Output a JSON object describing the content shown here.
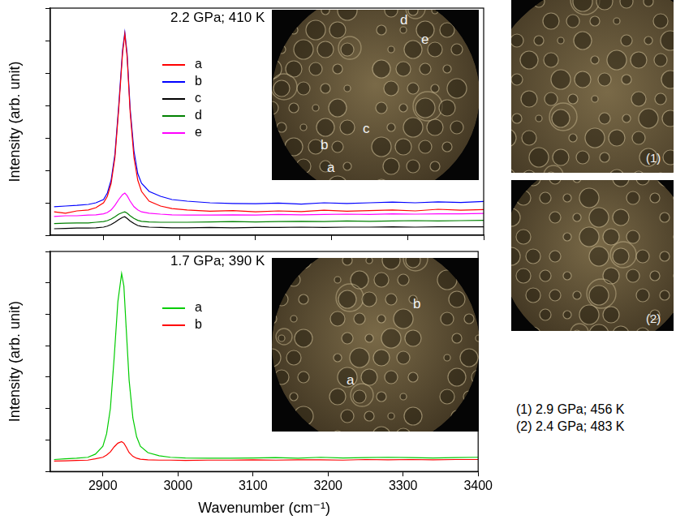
{
  "chart_data": [
    {
      "type": "line",
      "annotation": "2.2 GPa; 410 K",
      "y_label": "Intensity (arb. unit)",
      "x": [
        2835,
        2850,
        2865,
        2880,
        2890,
        2900,
        2905,
        2910,
        2915,
        2920,
        2925,
        2928,
        2931,
        2935,
        2940,
        2945,
        2950,
        2960,
        2975,
        2990,
        3010,
        3040,
        3070,
        3100,
        3130,
        3160,
        3190,
        3220,
        3250,
        3280,
        3310,
        3340,
        3370,
        3400
      ],
      "xlim": [
        2830,
        3400
      ],
      "xticks": [
        2900,
        3000,
        3100,
        3200,
        3300,
        3400
      ],
      "ylim": [
        0,
        7
      ],
      "yticks": [
        0,
        1,
        2,
        3,
        4,
        5,
        6,
        7
      ],
      "tick_labels": false,
      "legend": "upper left",
      "series": [
        {
          "name": "a",
          "color": "#ff0000",
          "values": [
            0.72,
            0.68,
            0.75,
            0.78,
            0.85,
            1.0,
            1.2,
            1.6,
            2.4,
            3.9,
            5.6,
            6.2,
            5.5,
            3.8,
            2.4,
            1.7,
            1.35,
            1.05,
            0.9,
            0.82,
            0.78,
            0.74,
            0.76,
            0.72,
            0.75,
            0.73,
            0.77,
            0.74,
            0.76,
            0.78,
            0.75,
            0.8,
            0.77,
            0.79
          ]
        },
        {
          "name": "b",
          "color": "#0000ff",
          "values": [
            0.88,
            0.9,
            0.92,
            0.95,
            1.0,
            1.1,
            1.3,
            1.7,
            2.5,
            4.0,
            5.7,
            6.25,
            5.6,
            3.9,
            2.6,
            1.9,
            1.6,
            1.35,
            1.2,
            1.1,
            1.05,
            1.0,
            0.98,
            0.97,
            0.99,
            0.96,
            1.0,
            0.98,
            1.0,
            1.02,
            1.0,
            1.03,
            1.01,
            1.04
          ]
        },
        {
          "name": "c",
          "color": "#000000",
          "values": [
            0.2,
            0.21,
            0.22,
            0.22,
            0.23,
            0.25,
            0.28,
            0.33,
            0.4,
            0.48,
            0.55,
            0.57,
            0.52,
            0.44,
            0.36,
            0.3,
            0.27,
            0.25,
            0.24,
            0.23,
            0.23,
            0.24,
            0.23,
            0.24,
            0.24,
            0.25,
            0.24,
            0.25,
            0.25,
            0.26,
            0.25,
            0.26,
            0.26,
            0.26
          ]
        },
        {
          "name": "d",
          "color": "#008000",
          "values": [
            0.36,
            0.37,
            0.38,
            0.38,
            0.4,
            0.42,
            0.45,
            0.5,
            0.57,
            0.65,
            0.7,
            0.72,
            0.68,
            0.6,
            0.52,
            0.46,
            0.43,
            0.41,
            0.4,
            0.4,
            0.4,
            0.41,
            0.42,
            0.41,
            0.42,
            0.43,
            0.42,
            0.44,
            0.43,
            0.44,
            0.45,
            0.44,
            0.45,
            0.46
          ]
        },
        {
          "name": "e",
          "color": "#ff00ff",
          "values": [
            0.58,
            0.6,
            0.6,
            0.62,
            0.63,
            0.66,
            0.7,
            0.78,
            0.92,
            1.1,
            1.25,
            1.3,
            1.22,
            1.05,
            0.88,
            0.78,
            0.72,
            0.68,
            0.65,
            0.63,
            0.62,
            0.62,
            0.63,
            0.62,
            0.64,
            0.63,
            0.64,
            0.65,
            0.64,
            0.66,
            0.65,
            0.66,
            0.66,
            0.67
          ]
        }
      ]
    },
    {
      "type": "line",
      "annotation": "1.7 GPa; 390 K",
      "y_label": "Intensity (arb. unit)",
      "x_label": "Wavenumber (cm⁻¹)",
      "x": [
        2835,
        2850,
        2865,
        2880,
        2890,
        2900,
        2905,
        2910,
        2915,
        2920,
        2925,
        2928,
        2931,
        2935,
        2940,
        2945,
        2950,
        2960,
        2975,
        2990,
        3010,
        3040,
        3070,
        3100,
        3130,
        3160,
        3190,
        3220,
        3250,
        3280,
        3310,
        3340,
        3370,
        3400
      ],
      "xlim": [
        2830,
        3400
      ],
      "xticks": [
        2900,
        3000,
        3100,
        3200,
        3300,
        3400
      ],
      "ylim": [
        0,
        7
      ],
      "yticks": [
        0,
        1,
        2,
        3,
        4,
        5,
        6,
        7
      ],
      "tick_labels": "x",
      "legend": "upper left",
      "series": [
        {
          "name": "a",
          "color": "#00cc00",
          "values": [
            0.38,
            0.4,
            0.42,
            0.45,
            0.55,
            0.8,
            1.2,
            2.0,
            3.6,
            5.4,
            6.3,
            5.9,
            4.6,
            2.9,
            1.7,
            1.1,
            0.8,
            0.6,
            0.5,
            0.45,
            0.43,
            0.42,
            0.42,
            0.43,
            0.44,
            0.42,
            0.45,
            0.43,
            0.44,
            0.45,
            0.44,
            0.43,
            0.44,
            0.45
          ]
        },
        {
          "name": "b",
          "color": "#ff0000",
          "values": [
            0.33,
            0.34,
            0.35,
            0.36,
            0.4,
            0.45,
            0.52,
            0.62,
            0.78,
            0.9,
            0.95,
            0.9,
            0.78,
            0.6,
            0.48,
            0.42,
            0.39,
            0.37,
            0.36,
            0.36,
            0.35,
            0.36,
            0.36,
            0.37,
            0.36,
            0.37,
            0.37,
            0.36,
            0.38,
            0.37,
            0.38,
            0.37,
            0.38,
            0.38
          ]
        }
      ]
    }
  ],
  "images": [
    {
      "labels": [
        "a",
        "b",
        "c",
        "d",
        "e"
      ]
    },
    {
      "labels": [
        "a",
        "b"
      ]
    },
    {
      "labels": [
        "(1)"
      ]
    },
    {
      "labels": [
        "(2)"
      ]
    }
  ],
  "captions": [
    "(1) 2.9 GPa; 456 K",
    "(2) 2.4 GPa; 483 K"
  ]
}
